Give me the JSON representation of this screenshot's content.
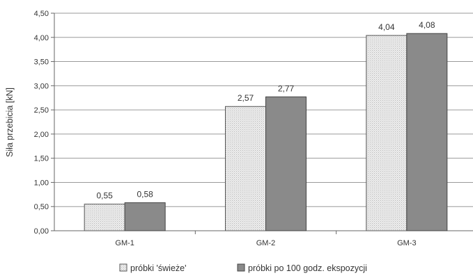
{
  "chart_data": {
    "type": "bar",
    "categories": [
      "GM-1",
      "GM-2",
      "GM-3"
    ],
    "series": [
      {
        "name": "próbki 'świeże'",
        "values": [
          0.55,
          2.57,
          4.04
        ],
        "labels": [
          "0,55",
          "2,57",
          "4,04"
        ],
        "color": "#e0e0e0",
        "pattern": "dotted"
      },
      {
        "name": "próbki po 100 godz. ekspozycji",
        "values": [
          0.58,
          2.77,
          4.08
        ],
        "labels": [
          "0,58",
          "2,77",
          "4,08"
        ],
        "color": "#8a8a8a",
        "pattern": "solid"
      }
    ],
    "title": "",
    "xlabel": "",
    "ylabel": "Siła przebicia  [kN]",
    "ylim": [
      0,
      4.5
    ],
    "yticks": [
      0,
      0.5,
      1.0,
      1.5,
      2.0,
      2.5,
      3.0,
      3.5,
      4.0,
      4.5
    ],
    "ytick_labels": [
      "0,00",
      "0,50",
      "1,00",
      "1,50",
      "2,00",
      "2,50",
      "3,00",
      "3,50",
      "4,00",
      "4,50"
    ],
    "grid": "horizontal",
    "legend_position": "bottom"
  }
}
